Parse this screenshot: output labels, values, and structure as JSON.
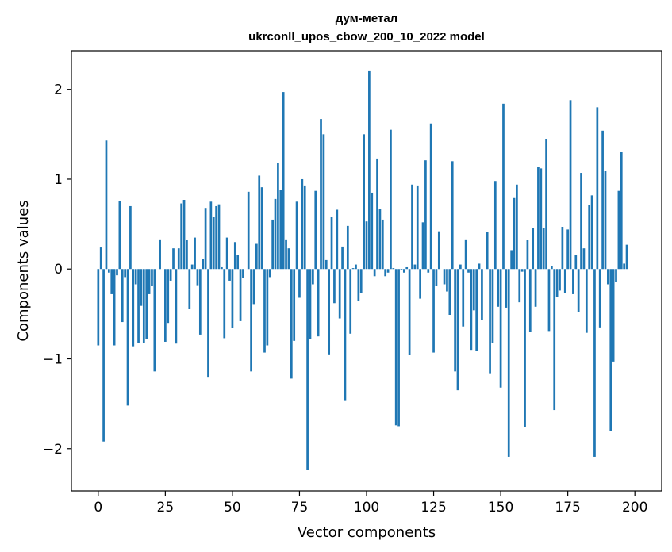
{
  "chart_data": {
    "type": "bar",
    "title_line1": "дум-метал",
    "title_line2": "ukrconll_upos_cbow_200_10_2022 model",
    "xlabel": "Vector components",
    "ylabel": "Components values",
    "xlim": [
      -10,
      210
    ],
    "ylim": [
      -2.47,
      2.43
    ],
    "x_ticks": [
      0,
      25,
      50,
      75,
      100,
      125,
      150,
      175,
      200
    ],
    "y_ticks": [
      -2,
      -1,
      0,
      1,
      2
    ],
    "x_tick_labels": [
      "0",
      "25",
      "50",
      "75",
      "100",
      "125",
      "150",
      "175",
      "200"
    ],
    "y_tick_labels": [
      "−2",
      "−1",
      "0",
      "1",
      "2"
    ],
    "bar_color": "#1f77b4",
    "grid": false,
    "legend": false,
    "values": [
      -0.85,
      0.24,
      -1.92,
      1.43,
      -0.04,
      -0.28,
      -0.85,
      -0.07,
      0.76,
      -0.59,
      -0.09,
      -1.52,
      0.7,
      -0.86,
      -0.17,
      -0.82,
      -0.41,
      -0.82,
      -0.78,
      -0.28,
      -0.19,
      -1.14,
      0.0,
      0.33,
      0.0,
      -0.81,
      -0.6,
      -0.13,
      0.23,
      -0.83,
      0.23,
      0.73,
      0.77,
      0.32,
      -0.44,
      0.05,
      0.35,
      -0.18,
      -0.73,
      0.11,
      0.68,
      -1.2,
      0.75,
      0.58,
      0.7,
      0.72,
      0.02,
      -0.77,
      0.35,
      -0.13,
      -0.66,
      0.3,
      0.16,
      -0.58,
      -0.1,
      0.0,
      0.86,
      -1.14,
      -0.39,
      0.28,
      1.04,
      0.91,
      -0.93,
      -0.85,
      -0.09,
      0.55,
      0.78,
      1.18,
      0.88,
      1.97,
      0.33,
      0.23,
      -1.22,
      -0.8,
      0.75,
      -0.32,
      1.0,
      0.93,
      -2.24,
      -0.78,
      -0.17,
      0.87,
      -0.75,
      1.67,
      1.5,
      0.1,
      -0.95,
      0.58,
      -0.38,
      0.66,
      -0.55,
      0.25,
      -1.46,
      0.48,
      -0.72,
      0.01,
      0.05,
      -0.36,
      -0.27,
      1.5,
      0.53,
      2.21,
      0.85,
      -0.08,
      1.23,
      0.67,
      0.55,
      -0.08,
      -0.04,
      1.55,
      0.01,
      -1.74,
      -1.75,
      -0.01,
      -0.04,
      0.02,
      -0.96,
      0.94,
      0.05,
      0.93,
      -0.33,
      0.52,
      1.21,
      -0.04,
      1.62,
      -0.93,
      -0.19,
      0.42,
      0.0,
      -0.17,
      -0.25,
      -0.51,
      1.2,
      -1.14,
      -1.35,
      0.05,
      -0.64,
      0.33,
      -0.04,
      -0.9,
      -0.46,
      -0.91,
      0.06,
      -0.57,
      0.0,
      0.41,
      -1.16,
      -0.82,
      0.98,
      -0.42,
      -1.32,
      1.84,
      -0.43,
      -2.09,
      0.21,
      0.79,
      0.94,
      -0.37,
      -0.03,
      -1.76,
      0.32,
      -0.7,
      0.46,
      -0.42,
      1.14,
      1.12,
      0.46,
      1.45,
      -0.69,
      0.03,
      -1.57,
      -0.31,
      -0.24,
      0.47,
      -0.27,
      0.44,
      1.88,
      -0.28,
      0.16,
      -0.48,
      1.07,
      0.23,
      -0.71,
      0.71,
      0.82,
      -2.09,
      1.8,
      -0.65,
      1.54,
      1.09,
      -0.17,
      -1.8,
      -1.03,
      -0.14,
      0.87,
      1.3,
      0.06,
      0.27
    ]
  }
}
